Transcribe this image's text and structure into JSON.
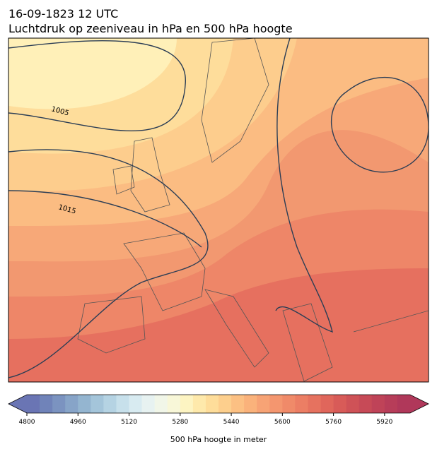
{
  "header": {
    "date": "16-09-1823 12 UTC",
    "title": "Luchtdruk op zeeniveau in hPa en 500 hPa hoogte"
  },
  "map": {
    "isobar_labels": [
      1005,
      1015
    ]
  },
  "colorbar": {
    "label": "500 hPa hoogte in meter",
    "lim": [
      4800,
      6000
    ],
    "ticks": [
      4800,
      4960,
      5120,
      5280,
      5440,
      5600,
      5760,
      5920
    ],
    "colors": [
      "#6a75b4",
      "#7083b9",
      "#7b93c0",
      "#87a4c8",
      "#94b5d0",
      "#a4c5da",
      "#b5d3e3",
      "#c7e0eb",
      "#d8ebf1",
      "#e7f2f1",
      "#f1f6e8",
      "#f8f7d8",
      "#fdf4c2",
      "#fee9ab",
      "#fedd9a",
      "#fdcf8d",
      "#fcc083",
      "#fab27b",
      "#f7a375",
      "#f4966f",
      "#f08a69",
      "#ec7e64",
      "#e6725f",
      "#e0665b",
      "#d85b58",
      "#cf5257",
      "#c74a57",
      "#bf4358",
      "#b73d59",
      "#b0385a"
    ]
  }
}
